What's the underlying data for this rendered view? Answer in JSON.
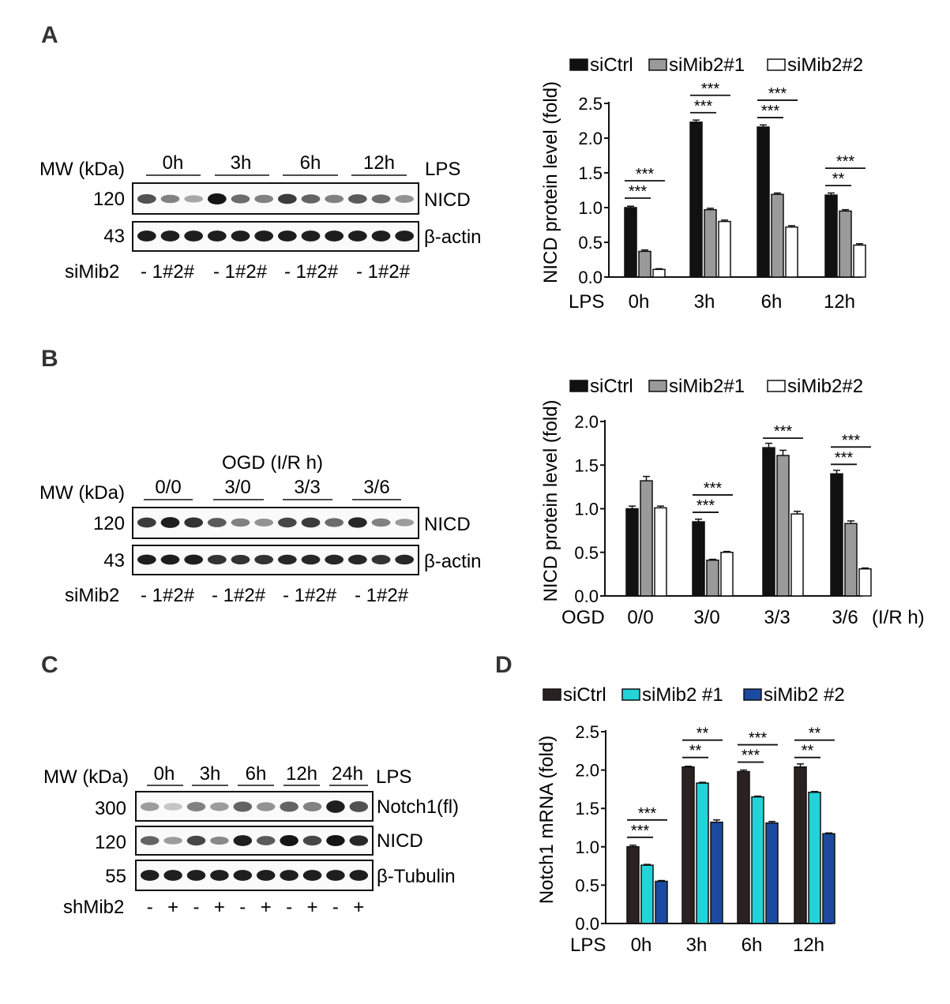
{
  "panel_labels": {
    "a": "A",
    "b": "B",
    "c": "C",
    "d": "D"
  },
  "colors": {
    "black": "#111111",
    "gray": "#9a9a9a",
    "white": "#ffffff",
    "dark": "#2a2220",
    "cyan": "#22d3d8",
    "blue": "#1b4aa0"
  },
  "blot_a": {
    "mw_label": "MW (kDa)",
    "treatment_label": "LPS",
    "groups": [
      "0h",
      "3h",
      "6h",
      "12h"
    ],
    "rows": [
      {
        "mw": "120",
        "label": "NICD",
        "lanes": [
          0.7,
          0.45,
          0.25,
          1.0,
          0.55,
          0.45,
          0.8,
          0.6,
          0.45,
          0.65,
          0.55,
          0.35
        ]
      },
      {
        "mw": "43",
        "label": "β-actin",
        "lanes": [
          0.95,
          0.95,
          0.95,
          0.95,
          0.95,
          0.95,
          0.95,
          0.95,
          0.95,
          0.95,
          0.95,
          0.95
        ]
      }
    ],
    "sirna_label": "siMib2",
    "lane_text": "- 1#2#"
  },
  "blot_b": {
    "mw_label": "MW (kDa)",
    "condition_header": "OGD (I/R h)",
    "groups": [
      "0/0",
      "3/0",
      "3/3",
      "3/6"
    ],
    "rows": [
      {
        "mw": "120",
        "label": "NICD",
        "lanes": [
          0.8,
          0.95,
          0.85,
          0.65,
          0.45,
          0.35,
          0.75,
          0.8,
          0.55,
          0.9,
          0.45,
          0.3
        ]
      },
      {
        "mw": "43",
        "label": "β-actin",
        "lanes": [
          0.95,
          0.95,
          0.95,
          0.85,
          0.85,
          0.85,
          0.9,
          0.9,
          0.9,
          0.9,
          0.85,
          0.9
        ]
      }
    ],
    "sirna_label": "siMib2",
    "lane_text": "- 1#2#"
  },
  "blot_c": {
    "mw_label": "MW (kDa)",
    "treatment_label": "LPS",
    "groups": [
      "0h",
      "3h",
      "6h",
      "12h",
      "24h"
    ],
    "rows": [
      {
        "mw": "300",
        "label": "Notch1(fl)",
        "lanes": [
          0.3,
          0.1,
          0.45,
          0.3,
          0.6,
          0.35,
          0.6,
          0.45,
          0.95,
          0.7
        ]
      },
      {
        "mw": "120",
        "label": "NICD",
        "lanes": [
          0.6,
          0.3,
          0.75,
          0.4,
          0.95,
          0.65,
          1.0,
          0.75,
          1.0,
          0.9
        ]
      },
      {
        "mw": "55",
        "label": "β-Tubulin",
        "lanes": [
          0.95,
          0.95,
          0.95,
          0.95,
          0.95,
          0.95,
          0.95,
          0.95,
          0.95,
          0.95
        ]
      }
    ],
    "sh_label": "shMib2",
    "sh_signs": [
      "-",
      "+",
      "-",
      "+",
      "-",
      "+",
      "-",
      "+",
      "-",
      "+"
    ]
  },
  "chart_data": [
    {
      "type": "bar",
      "ylabel": "NICD protein level (fold)",
      "x_prefix": "LPS",
      "x_suffix": "",
      "categories": [
        "0h",
        "3h",
        "6h",
        "12h"
      ],
      "ylim": [
        0,
        2.5
      ],
      "yticks": [
        "0.0",
        "0.5",
        "1.0",
        "1.5",
        "2.0",
        "2.5"
      ],
      "legend_position": "top",
      "series": [
        {
          "name": "siCtrl",
          "color": "#111111",
          "values": [
            1.0,
            2.23,
            2.16,
            1.18
          ],
          "errors": [
            0.02,
            0.03,
            0.03,
            0.03
          ]
        },
        {
          "name": "siMib2#1",
          "color": "#9a9a9a",
          "values": [
            0.37,
            0.97,
            1.19,
            0.95
          ],
          "errors": [
            0.02,
            0.02,
            0.02,
            0.02
          ]
        },
        {
          "name": "siMib2#2",
          "color": "#ffffff",
          "values": [
            0.11,
            0.8,
            0.72,
            0.46
          ],
          "errors": [
            0.01,
            0.02,
            0.02,
            0.02
          ]
        }
      ],
      "significance": [
        {
          "cat": 0,
          "from": 0,
          "to": 1,
          "level": 1,
          "stars": "***"
        },
        {
          "cat": 0,
          "from": 0,
          "to": 2,
          "level": 2,
          "stars": "***"
        },
        {
          "cat": 1,
          "from": 0,
          "to": 1,
          "level": 1,
          "stars": "***"
        },
        {
          "cat": 1,
          "from": 0,
          "to": 2,
          "level": 2,
          "stars": "***"
        },
        {
          "cat": 2,
          "from": 0,
          "to": 1,
          "level": 1,
          "stars": "***"
        },
        {
          "cat": 2,
          "from": 0,
          "to": 2,
          "level": 2,
          "stars": "***"
        },
        {
          "cat": 3,
          "from": 0,
          "to": 1,
          "level": 1,
          "stars": "**"
        },
        {
          "cat": 3,
          "from": 0,
          "to": 2,
          "level": 2,
          "stars": "***"
        }
      ]
    },
    {
      "type": "bar",
      "ylabel": "NICD protein level (fold)",
      "x_prefix": "OGD",
      "x_suffix": "(I/R h)",
      "categories": [
        "0/0",
        "3/0",
        "3/3",
        "3/6"
      ],
      "ylim": [
        0,
        2.0
      ],
      "yticks": [
        "0.0",
        "0.5",
        "1.0",
        "1.5",
        "2.0"
      ],
      "legend_position": "top",
      "series": [
        {
          "name": "siCtrl",
          "color": "#111111",
          "values": [
            1.0,
            0.85,
            1.7,
            1.4
          ],
          "errors": [
            0.03,
            0.03,
            0.05,
            0.04
          ]
        },
        {
          "name": "siMib2#1",
          "color": "#9a9a9a",
          "values": [
            1.32,
            0.41,
            1.61,
            0.83
          ],
          "errors": [
            0.05,
            0.01,
            0.06,
            0.03
          ]
        },
        {
          "name": "siMib2#2",
          "color": "#ffffff",
          "values": [
            1.01,
            0.5,
            0.94,
            0.31
          ],
          "errors": [
            0.02,
            0.01,
            0.03,
            0.01
          ]
        }
      ],
      "significance": [
        {
          "cat": 1,
          "from": 0,
          "to": 1,
          "level": 1,
          "stars": "***"
        },
        {
          "cat": 1,
          "from": 0,
          "to": 2,
          "level": 2,
          "stars": "***"
        },
        {
          "cat": 2,
          "from": 0,
          "to": 2,
          "level": 1,
          "stars": "***"
        },
        {
          "cat": 3,
          "from": 0,
          "to": 1,
          "level": 1,
          "stars": "***"
        },
        {
          "cat": 3,
          "from": 0,
          "to": 2,
          "level": 2,
          "stars": "***"
        }
      ]
    },
    {
      "type": "bar",
      "ylabel": "Notch1 mRNA (fold)",
      "x_prefix": "LPS",
      "x_suffix": "",
      "categories": [
        "0h",
        "3h",
        "6h",
        "12h"
      ],
      "ylim": [
        0,
        2.5
      ],
      "yticks": [
        "0.0",
        "0.5",
        "1.0",
        "1.5",
        "2.0",
        "2.5"
      ],
      "legend_position": "top",
      "series": [
        {
          "name": "siCtrl",
          "color": "#2a2220",
          "values": [
            1.0,
            2.04,
            1.98,
            2.04
          ],
          "errors": [
            0.02,
            0.01,
            0.02,
            0.04
          ]
        },
        {
          "name": "siMib2 #1",
          "color": "#22d3d8",
          "values": [
            0.76,
            1.83,
            1.65,
            1.71
          ],
          "errors": [
            0.01,
            0.01,
            0.01,
            0.01
          ]
        },
        {
          "name": "siMib2 #2",
          "color": "#1b4aa0",
          "values": [
            0.55,
            1.32,
            1.31,
            1.17
          ],
          "errors": [
            0.01,
            0.03,
            0.02,
            0.01
          ]
        }
      ],
      "significance": [
        {
          "cat": 0,
          "from": 0,
          "to": 1,
          "level": 1,
          "stars": "***"
        },
        {
          "cat": 0,
          "from": 0,
          "to": 2,
          "level": 2,
          "stars": "***"
        },
        {
          "cat": 1,
          "from": 0,
          "to": 1,
          "level": 1,
          "stars": "**"
        },
        {
          "cat": 1,
          "from": 0,
          "to": 2,
          "level": 2,
          "stars": "**"
        },
        {
          "cat": 2,
          "from": 0,
          "to": 1,
          "level": 1,
          "stars": "***"
        },
        {
          "cat": 2,
          "from": 0,
          "to": 2,
          "level": 2,
          "stars": "***"
        },
        {
          "cat": 3,
          "from": 0,
          "to": 1,
          "level": 1,
          "stars": "**"
        },
        {
          "cat": 3,
          "from": 0,
          "to": 2,
          "level": 2,
          "stars": "**"
        }
      ]
    }
  ]
}
